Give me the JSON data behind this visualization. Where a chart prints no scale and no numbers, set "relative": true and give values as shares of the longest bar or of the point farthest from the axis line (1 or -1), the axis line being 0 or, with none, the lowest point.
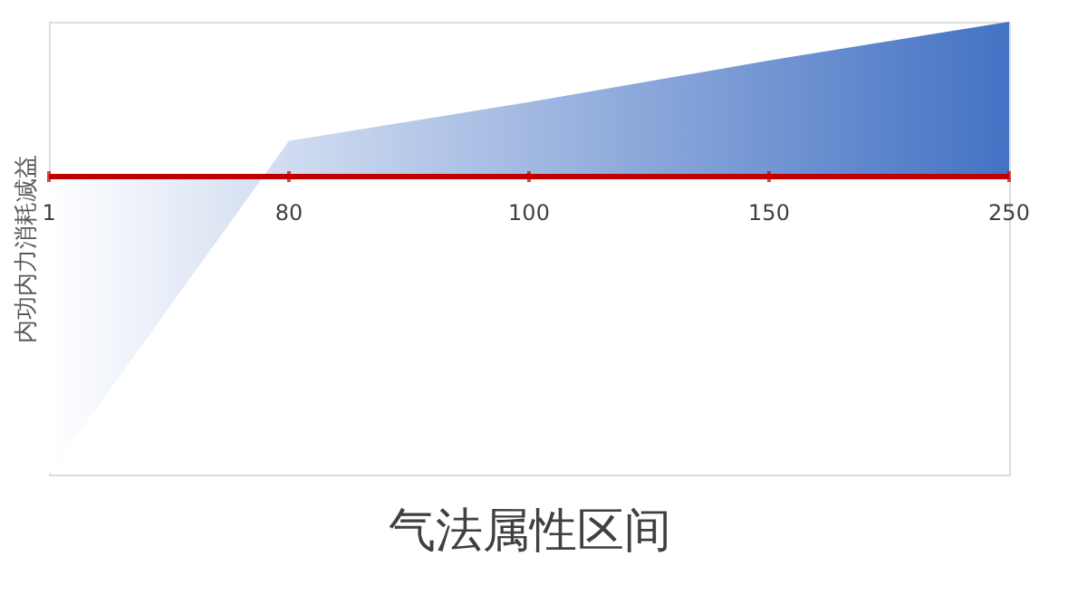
{
  "chart_data": {
    "type": "area",
    "xlabel": "气法属性区间",
    "ylabel": "内功内力消耗减益",
    "categories": [
      "1",
      "80",
      "100",
      "150",
      "250"
    ],
    "relative": true,
    "series": [
      {
        "color": "#4472c4",
        "values": [
          -1,
          0.12,
          0.25,
          0.39,
          0.52
        ]
      }
    ]
  }
}
